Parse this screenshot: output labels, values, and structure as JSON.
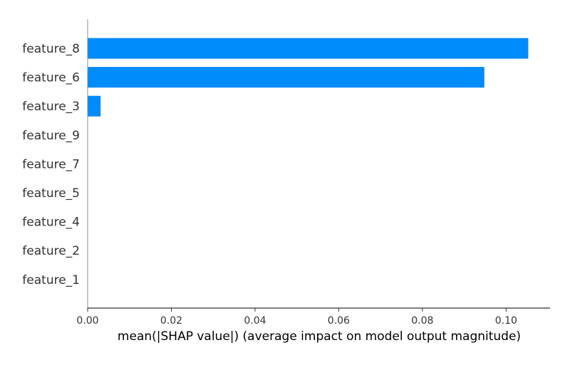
{
  "chart_data": {
    "type": "bar",
    "orientation": "horizontal",
    "title": "",
    "xlabel": "mean(|SHAP value|) (average impact on model output magnitude)",
    "ylabel": "",
    "categories": [
      "feature_8",
      "feature_6",
      "feature_3",
      "feature_9",
      "feature_7",
      "feature_5",
      "feature_4",
      "feature_2",
      "feature_1"
    ],
    "values": [
      0.1053,
      0.0948,
      0.0031,
      0,
      0,
      0,
      0,
      0,
      0
    ],
    "xlim": [
      0,
      0.1105
    ],
    "xticks": [
      "0.00",
      "0.02",
      "0.04",
      "0.06",
      "0.08",
      "0.10"
    ],
    "grid": false,
    "bar_color": "#008bfb"
  }
}
